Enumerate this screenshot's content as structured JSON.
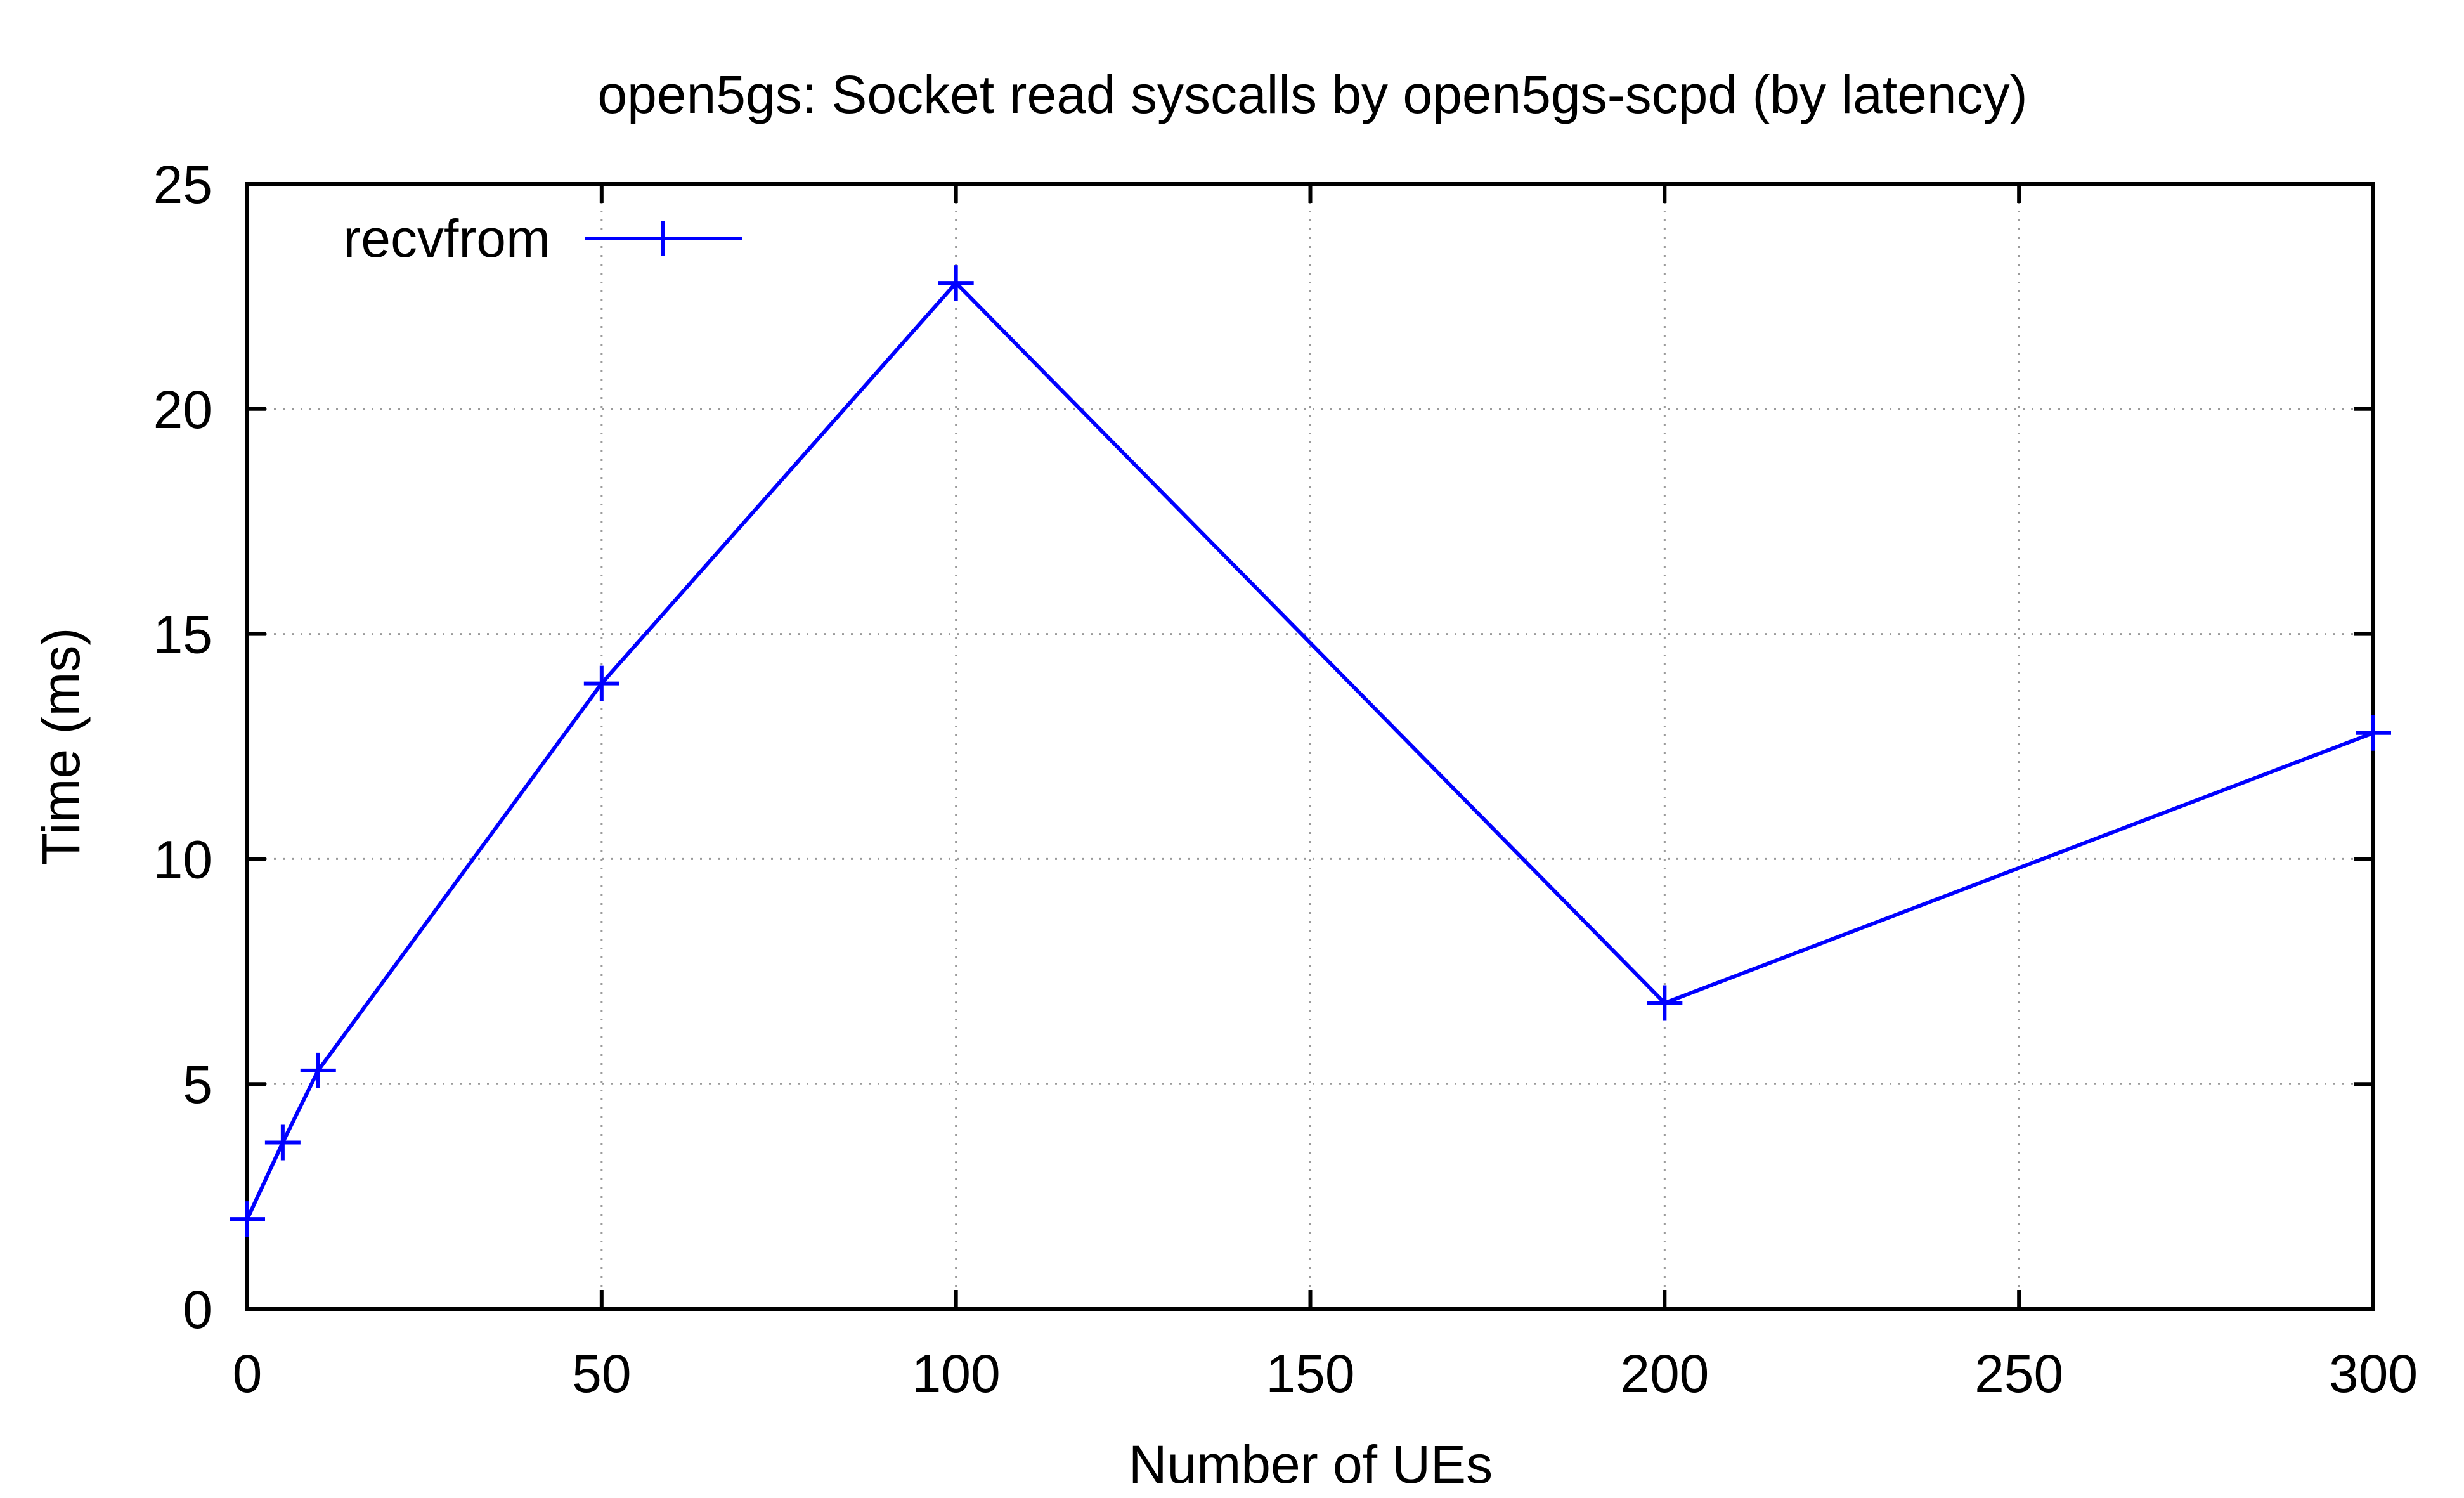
{
  "chart_data": {
    "type": "line",
    "title": "open5gs: Socket read syscalls by open5gs-scpd (by latency)",
    "xlabel": "Number of UEs",
    "ylabel": "Time (ms)",
    "xlim": [
      0,
      300
    ],
    "ylim": [
      0,
      25
    ],
    "xticks": [
      0,
      50,
      100,
      150,
      200,
      250,
      300
    ],
    "yticks": [
      0,
      5,
      10,
      15,
      20,
      25
    ],
    "xtick_labels": [
      "0",
      "50",
      "100",
      "150",
      "200",
      "250",
      "300"
    ],
    "ytick_labels": [
      "0",
      "5",
      "10",
      "15",
      "20",
      "25"
    ],
    "grid": true,
    "legend_position": "top-left",
    "series": [
      {
        "name": "recvfrom",
        "color": "#0000ff",
        "marker": "plus",
        "x": [
          0,
          5,
          10,
          50,
          100,
          200,
          300
        ],
        "y": [
          2.0,
          3.7,
          5.3,
          13.9,
          22.8,
          6.8,
          12.8
        ]
      }
    ]
  }
}
